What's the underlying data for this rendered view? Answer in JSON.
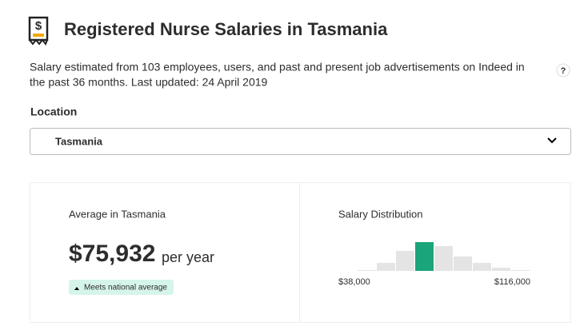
{
  "header": {
    "title": "Registered Nurse Salaries in Tasmania"
  },
  "description": {
    "lines": [
      "Salary estimated from 103 employees, users, and past and present job advertisements on Indeed in",
      "the past 36 months. Last updated: 24 April 2019"
    ],
    "help": "?"
  },
  "location": {
    "label": "Location",
    "selected": "Tasmania"
  },
  "average": {
    "heading": "Average in Tasmania",
    "amount": "$75,932",
    "period": "per year",
    "badge": "Meets national average"
  },
  "distribution": {
    "heading": "Salary Distribution",
    "min_label": "$38,000",
    "max_label": "$116,000",
    "bars": [
      1,
      10,
      25,
      36,
      31,
      18,
      10,
      4,
      1
    ],
    "highlight_index": 3,
    "color": "#e4e4e4",
    "highlight_color": "#1aa57a"
  }
}
